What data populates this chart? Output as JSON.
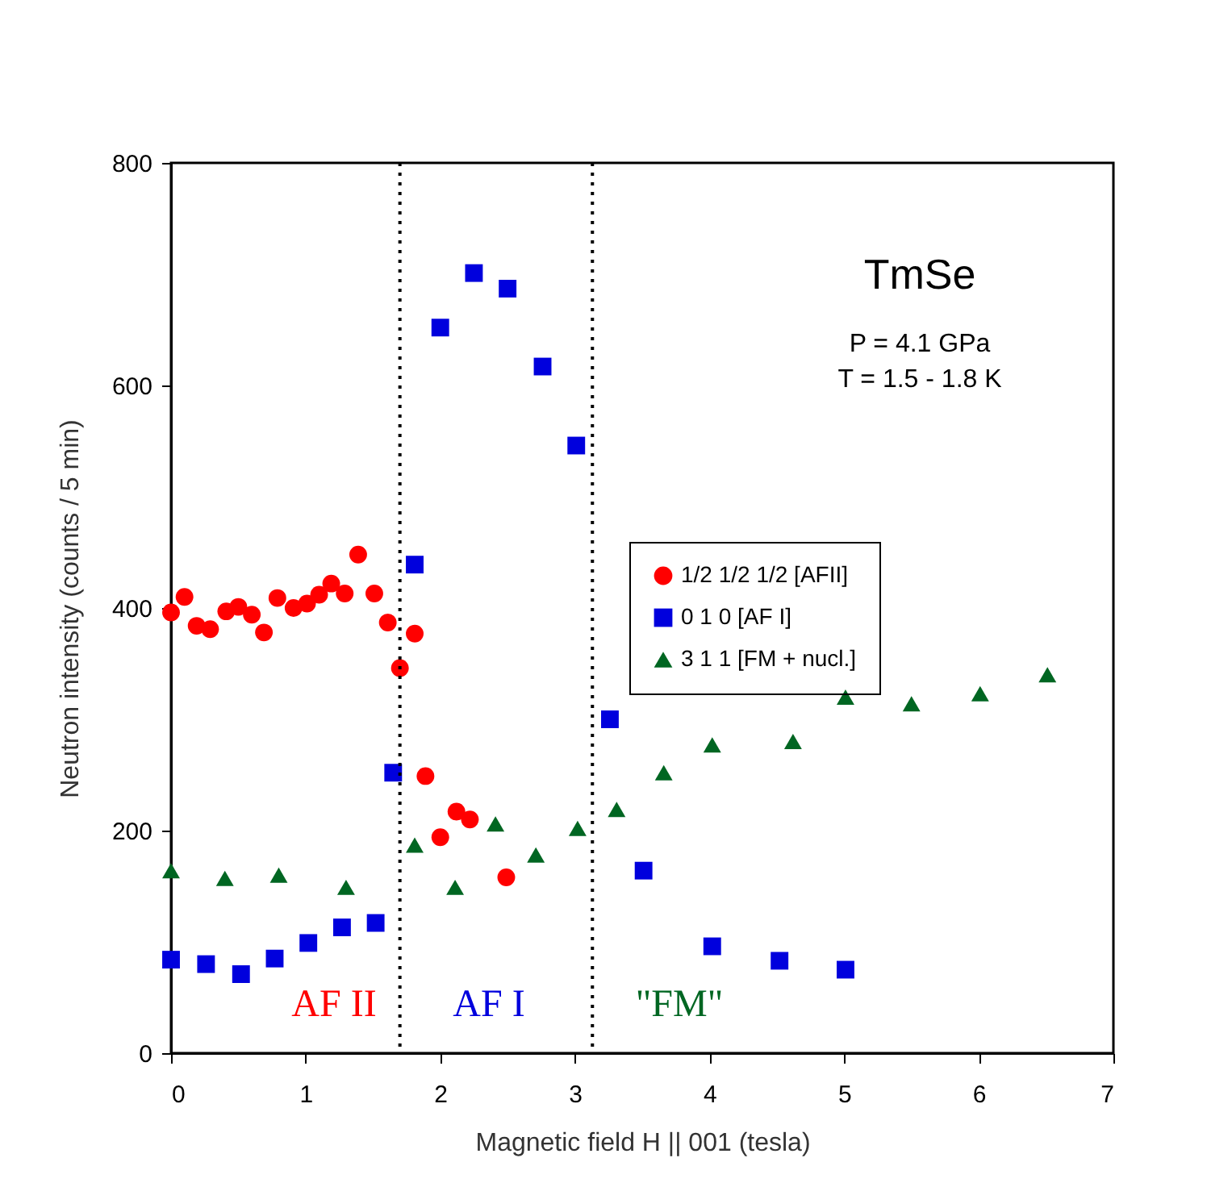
{
  "chart_data": {
    "type": "scatter",
    "xlabel": "Magnetic field H || 001 (tesla)",
    "ylabel": "Neutron intensity (counts / 5 min)",
    "xlim": [
      0,
      7
    ],
    "ylim": [
      0,
      800
    ],
    "xticks": [
      0,
      1,
      2,
      3,
      4,
      5,
      6,
      7
    ],
    "yticks": [
      0,
      200,
      400,
      600,
      800
    ],
    "grid": false,
    "legend": "right",
    "series": [
      {
        "name": "1/2 1/2 1/2 [AFII]",
        "color": "#ff0000",
        "marker": "circle",
        "x": [
          0,
          0.1,
          0.19,
          0.29,
          0.41,
          0.5,
          0.6,
          0.69,
          0.79,
          0.91,
          1.01,
          1.1,
          1.19,
          1.29,
          1.39,
          1.51,
          1.61,
          1.7,
          1.81,
          1.89,
          2.0,
          2.12,
          2.22,
          2.49
        ],
        "values": [
          396,
          410,
          384,
          381,
          397,
          401,
          394,
          378,
          409,
          400,
          404,
          412,
          422,
          413,
          448,
          413,
          387,
          346,
          377,
          249,
          194,
          217,
          210,
          158
        ]
      },
      {
        "name": "0 1 0 [AF I]",
        "color": "#0000dd",
        "marker": "square",
        "x": [
          0,
          0.26,
          0.52,
          0.77,
          1.02,
          1.27,
          1.52,
          1.65,
          1.81,
          2.0,
          2.25,
          2.5,
          2.76,
          3.01,
          3.26,
          3.51,
          4.02,
          4.52,
          5.01
        ],
        "values": [
          84,
          80,
          71,
          85,
          99,
          113,
          117,
          252,
          439,
          652,
          701,
          687,
          617,
          546,
          300,
          164,
          96,
          83,
          75
        ]
      },
      {
        "name": "3 1 1 [FM + nucl.]",
        "color": "#006622",
        "marker": "triangle",
        "x": [
          0,
          0.4,
          0.8,
          1.3,
          1.81,
          2.11,
          2.41,
          2.71,
          3.02,
          3.31,
          3.66,
          4.02,
          4.62,
          5.01,
          5.5,
          6.01,
          6.51
        ],
        "values": [
          164,
          157,
          160,
          149,
          187,
          149,
          206,
          178,
          202,
          219,
          252,
          277,
          280,
          320,
          314,
          323,
          340
        ]
      }
    ],
    "ref_lines": [
      {
        "axis": "x",
        "value": 1.7,
        "color": "#000000",
        "line_style": "dotted"
      },
      {
        "axis": "x",
        "value": 3.13,
        "color": "#000000",
        "line_style": "dotted"
      }
    ],
    "annotations": [
      "AF II",
      "AF I",
      "\"FM\"",
      "TmSe",
      "P = 4.1 GPa",
      "T = 1.5 - 1.8 K"
    ]
  }
}
